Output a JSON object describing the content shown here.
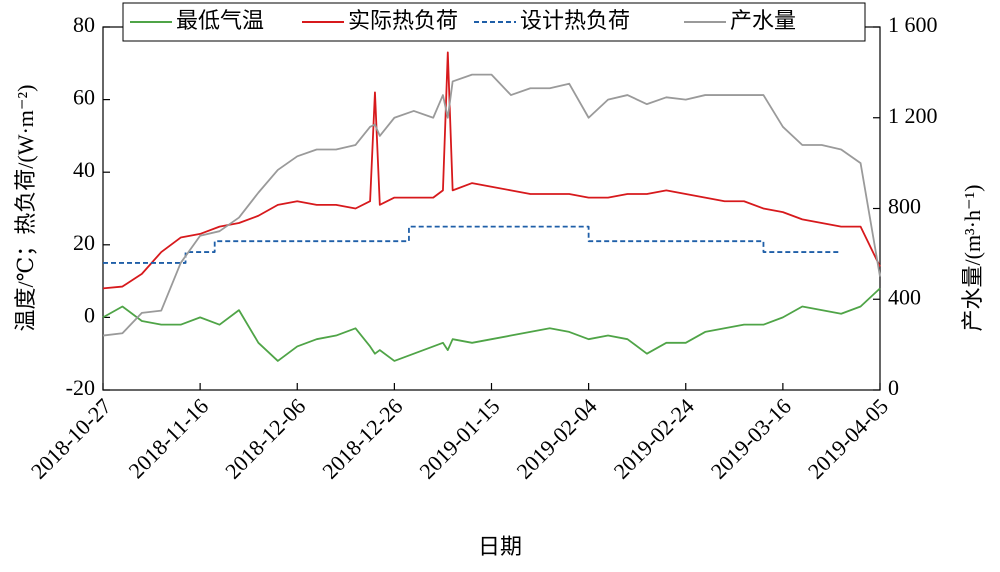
{
  "chart_data": {
    "type": "line",
    "x_label": "日期",
    "y_label": "温度/℃；热负荷/(W·m⁻²)",
    "y2_label": "产水量/(m³·h⁻¹)",
    "xlim": [
      "2018-10-27",
      "2019-04-05"
    ],
    "xticks": [
      "2018-10-27",
      "2018-11-16",
      "2018-12-06",
      "2018-12-26",
      "2019-01-15",
      "2019-02-04",
      "2019-02-24",
      "2019-03-16",
      "2019-04-05"
    ],
    "ylim": [
      -20,
      80
    ],
    "yticks": [
      -20,
      0,
      20,
      40,
      60,
      80
    ],
    "y2lim": [
      0,
      1600
    ],
    "y2ticks": [
      0,
      400,
      800,
      {
        "value": 1200,
        "label": "1 200"
      },
      {
        "value": 1600,
        "label": "1 600"
      }
    ],
    "legend": "top",
    "x": [
      "2018-10-27",
      "2018-10-31",
      "2018-11-04",
      "2018-11-08",
      "2018-11-12",
      "2018-11-16",
      "2018-11-20",
      "2018-11-24",
      "2018-11-28",
      "2018-12-02",
      "2018-12-06",
      "2018-12-10",
      "2018-12-14",
      "2018-12-18",
      "2018-12-21",
      "2018-12-22",
      "2018-12-23",
      "2018-12-26",
      "2018-12-30",
      "2019-01-03",
      "2019-01-05",
      "2019-01-06",
      "2019-01-07",
      "2019-01-11",
      "2019-01-15",
      "2019-01-19",
      "2019-01-23",
      "2019-01-27",
      "2019-01-31",
      "2019-02-04",
      "2019-02-08",
      "2019-02-12",
      "2019-02-16",
      "2019-02-20",
      "2019-02-24",
      "2019-02-28",
      "2019-03-04",
      "2019-03-08",
      "2019-03-12",
      "2019-03-16",
      "2019-03-20",
      "2019-03-24",
      "2019-03-28",
      "2019-04-01",
      "2019-04-05"
    ],
    "series": [
      {
        "name": "最低气温",
        "color": "#4fa447",
        "dash": false,
        "values": [
          0,
          3,
          -1,
          -2,
          -2,
          0,
          -2,
          2,
          -7,
          -12,
          -8,
          -6,
          -5,
          -3,
          -8,
          -10,
          -9,
          -12,
          -10,
          -8,
          -7,
          -9,
          -6,
          -7,
          -6,
          -5,
          -4,
          -3,
          -4,
          -6,
          -5,
          -6,
          -10,
          -7,
          -7,
          -4,
          -3,
          -2,
          -2,
          0,
          3,
          2,
          1,
          3,
          8
        ]
      },
      {
        "name": "实际热负荷",
        "color": "#d7191c",
        "dash": false,
        "values": [
          8,
          8.5,
          12,
          18,
          22,
          23,
          25,
          26,
          28,
          31,
          32,
          31,
          31,
          30,
          32,
          62,
          31,
          33,
          33,
          33,
          35,
          73,
          35,
          37,
          36,
          35,
          34,
          34,
          34,
          33,
          33,
          34,
          34,
          35,
          34,
          33,
          32,
          32,
          30,
          29,
          27,
          26,
          25,
          25,
          14
        ]
      },
      {
        "name": "设计热负荷",
        "color": "#1f5fa8",
        "dash": true,
        "step": "post",
        "x": [
          "2018-10-27",
          "2018-11-13",
          "2018-11-19",
          "2018-12-29",
          "2019-02-04",
          "2019-03-12",
          "2019-03-28"
        ],
        "values": [
          15,
          18,
          21,
          25,
          21,
          18,
          18
        ]
      },
      {
        "name": "产水量",
        "color": "#9a9a9a",
        "dash": false,
        "axis": "y2",
        "values": [
          240,
          250,
          340,
          350,
          560,
          680,
          700,
          760,
          870,
          970,
          1030,
          1060,
          1060,
          1080,
          1160,
          1170,
          1120,
          1200,
          1230,
          1200,
          1300,
          1200,
          1360,
          1390,
          1390,
          1300,
          1330,
          1330,
          1350,
          1200,
          1280,
          1300,
          1260,
          1290,
          1280,
          1300,
          1300,
          1300,
          1300,
          1160,
          1080,
          1080,
          1060,
          1000,
          500
        ]
      }
    ]
  }
}
